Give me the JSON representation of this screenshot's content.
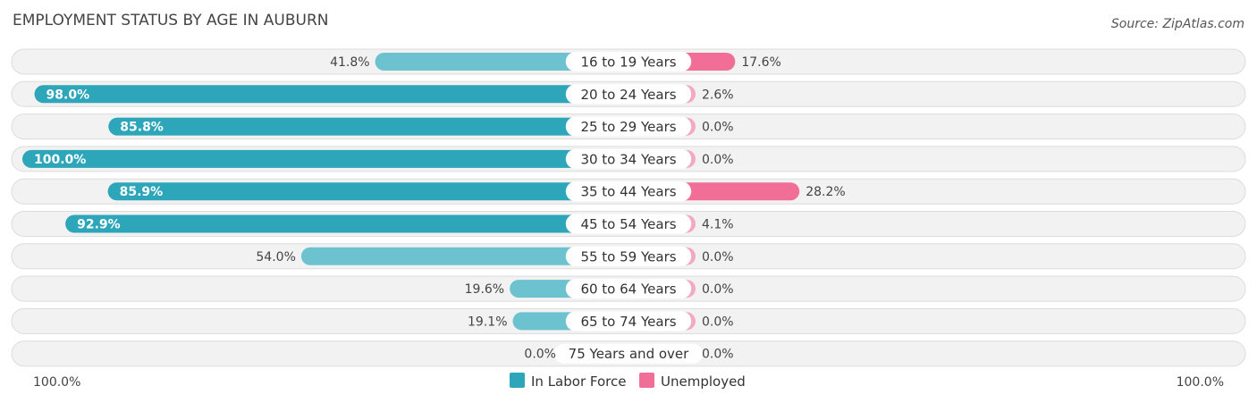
{
  "chart_data": {
    "type": "bar",
    "orientation": "horizontal-diverging",
    "title": "EMPLOYMENT STATUS BY AGE IN AUBURN",
    "source": "Source: ZipAtlas.com",
    "categories": [
      "16 to 19 Years",
      "20 to 24 Years",
      "25 to 29 Years",
      "30 to 34 Years",
      "35 to 44 Years",
      "45 to 54 Years",
      "55 to 59 Years",
      "60 to 64 Years",
      "65 to 74 Years",
      "75 Years and over"
    ],
    "series": [
      {
        "name": "In Labor Force",
        "color": "#2ca6b8",
        "color_light": "#6cc3cf",
        "values": [
          41.8,
          98.0,
          85.8,
          100.0,
          85.9,
          92.9,
          54.0,
          19.6,
          19.1,
          0.0
        ],
        "labels": [
          "41.8%",
          "98.0%",
          "85.8%",
          "100.0%",
          "85.9%",
          "92.9%",
          "54.0%",
          "19.6%",
          "19.1%",
          "0.0%"
        ]
      },
      {
        "name": "Unemployed",
        "color": "#f06e98",
        "color_light": "#f5a9c1",
        "values": [
          17.6,
          2.6,
          0.0,
          0.0,
          28.2,
          4.1,
          0.0,
          0.0,
          0.0,
          0.0
        ],
        "labels": [
          "17.6%",
          "2.6%",
          "0.0%",
          "0.0%",
          "28.2%",
          "4.1%",
          "0.0%",
          "0.0%",
          "0.0%",
          "0.0%"
        ]
      }
    ],
    "axis_left_label": "100.0%",
    "axis_right_label": "100.0%",
    "xlim": [
      0,
      100
    ],
    "legend": "bottom-center",
    "grid": false
  }
}
